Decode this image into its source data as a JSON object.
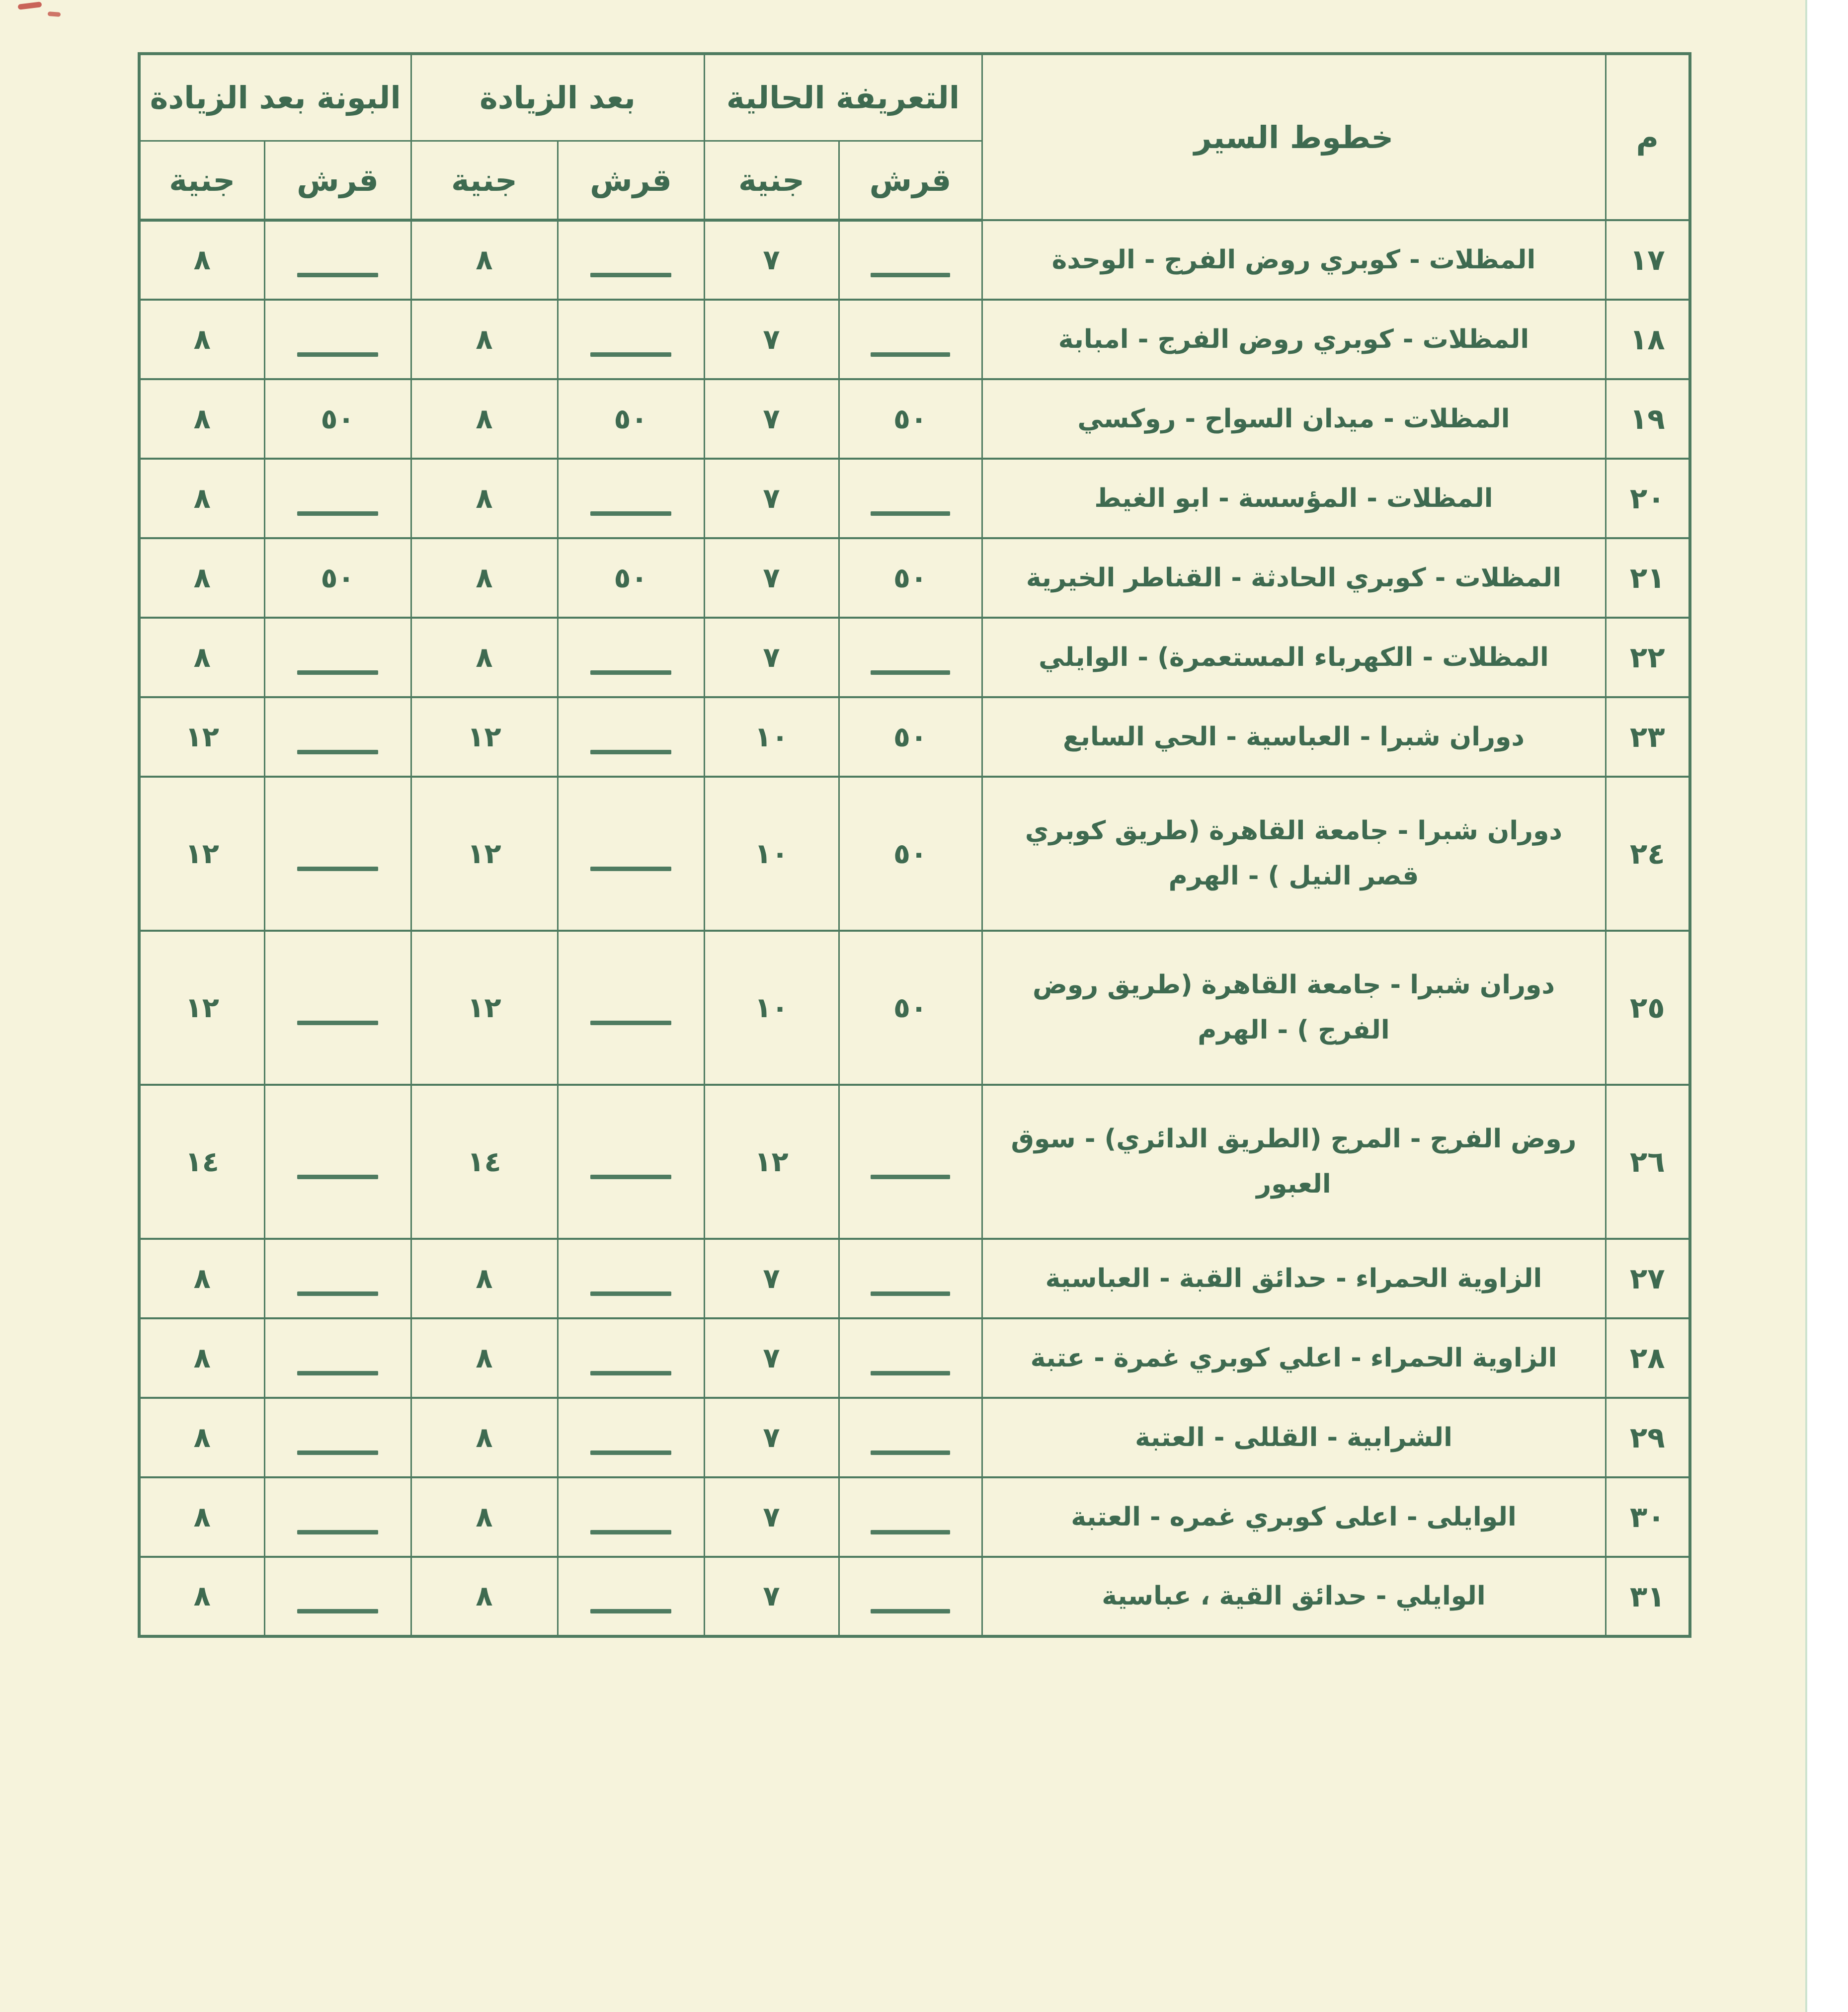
{
  "colors": {
    "paper": "#f6f3dc",
    "line": "#4e7b60",
    "ink": "#3e6a50",
    "strip": "#ffffff",
    "strip_edge": "#cde3cf",
    "pen_mark": "#c4544a"
  },
  "table": {
    "header": {
      "no": "م",
      "routes": "خطوط السير",
      "groups": [
        {
          "label": "التعريفة الحالية",
          "sub": [
            "قرش",
            "جنية"
          ]
        },
        {
          "label": "بعد الزيادة",
          "sub": [
            "قرش",
            "جنية"
          ]
        },
        {
          "label": "البونة بعد الزيادة",
          "sub": [
            "قرش",
            "جنية"
          ]
        }
      ]
    },
    "rows": [
      {
        "no": "١٧",
        "route": "المظلات - كوبري روض الفرج - الوحدة",
        "tall": false,
        "cells": [
          "—",
          "٧",
          "—",
          "٨",
          "—",
          "٨"
        ]
      },
      {
        "no": "١٨",
        "route": "المظلات - كوبري روض الفرج - امبابة",
        "tall": false,
        "cells": [
          "—",
          "٧",
          "—",
          "٨",
          "—",
          "٨"
        ]
      },
      {
        "no": "١٩",
        "route": "المظلات - ميدان السواح - روكسي",
        "tall": false,
        "cells": [
          "٥٠",
          "٧",
          "٥٠",
          "٨",
          "٥٠",
          "٨"
        ]
      },
      {
        "no": "٢٠",
        "route": "المظلات - المؤسسة - ابو الغيط",
        "tall": false,
        "cells": [
          "—",
          "٧",
          "—",
          "٨",
          "—",
          "٨"
        ]
      },
      {
        "no": "٢١",
        "route": "المظلات - كوبري الحادثة - القناطر الخيرية",
        "tall": false,
        "cells": [
          "٥٠",
          "٧",
          "٥٠",
          "٨",
          "٥٠",
          "٨"
        ]
      },
      {
        "no": "٢٢",
        "route": "المظلات - الكهرباء المستعمرة) - الوايلي",
        "tall": false,
        "cells": [
          "—",
          "٧",
          "—",
          "٨",
          "—",
          "٨"
        ]
      },
      {
        "no": "٢٣",
        "route": "دوران شبرا - العباسية - الحي السابع",
        "tall": false,
        "cells": [
          "٥٠",
          "١٠",
          "—",
          "١٢",
          "—",
          "١٢"
        ]
      },
      {
        "no": "٢٤",
        "route": "دوران شبرا - جامعة القاهرة (طريق كوبري قصر النيل ) - الهرم",
        "tall": true,
        "cells": [
          "٥٠",
          "١٠",
          "—",
          "١٢",
          "—",
          "١٢"
        ]
      },
      {
        "no": "٢٥",
        "route": "دوران شبرا - جامعة القاهرة (طريق روض الفرج ) - الهرم",
        "tall": true,
        "cells": [
          "٥٠",
          "١٠",
          "—",
          "١٢",
          "—",
          "١٢"
        ]
      },
      {
        "no": "٢٦",
        "route": "روض الفرج - المرج (الطريق الدائري) - سوق العبور",
        "tall": true,
        "cells": [
          "—",
          "١٢",
          "—",
          "١٤",
          "—",
          "١٤"
        ]
      },
      {
        "no": "٢٧",
        "route": "الزاوية الحمراء - حدائق القبة - العباسية",
        "tall": false,
        "cells": [
          "—",
          "٧",
          "—",
          "٨",
          "—",
          "٨"
        ]
      },
      {
        "no": "٢٨",
        "route": "الزاوية الحمراء - اعلي كوبري غمرة - عتبة",
        "tall": false,
        "cells": [
          "—",
          "٧",
          "—",
          "٨",
          "—",
          "٨"
        ]
      },
      {
        "no": "٢٩",
        "route": "الشرابية - القللى - العتبة",
        "tall": false,
        "cells": [
          "—",
          "٧",
          "—",
          "٨",
          "—",
          "٨"
        ]
      },
      {
        "no": "٣٠",
        "route": "الوايلى - اعلى كوبري غمره - العتبة",
        "tall": false,
        "cells": [
          "—",
          "٧",
          "—",
          "٨",
          "—",
          "٨"
        ]
      },
      {
        "no": "٣١",
        "route": "الوايلي - حدائق القية ، عباسية",
        "tall": false,
        "cells": [
          "—",
          "٧",
          "—",
          "٨",
          "—",
          "٨"
        ]
      }
    ]
  }
}
